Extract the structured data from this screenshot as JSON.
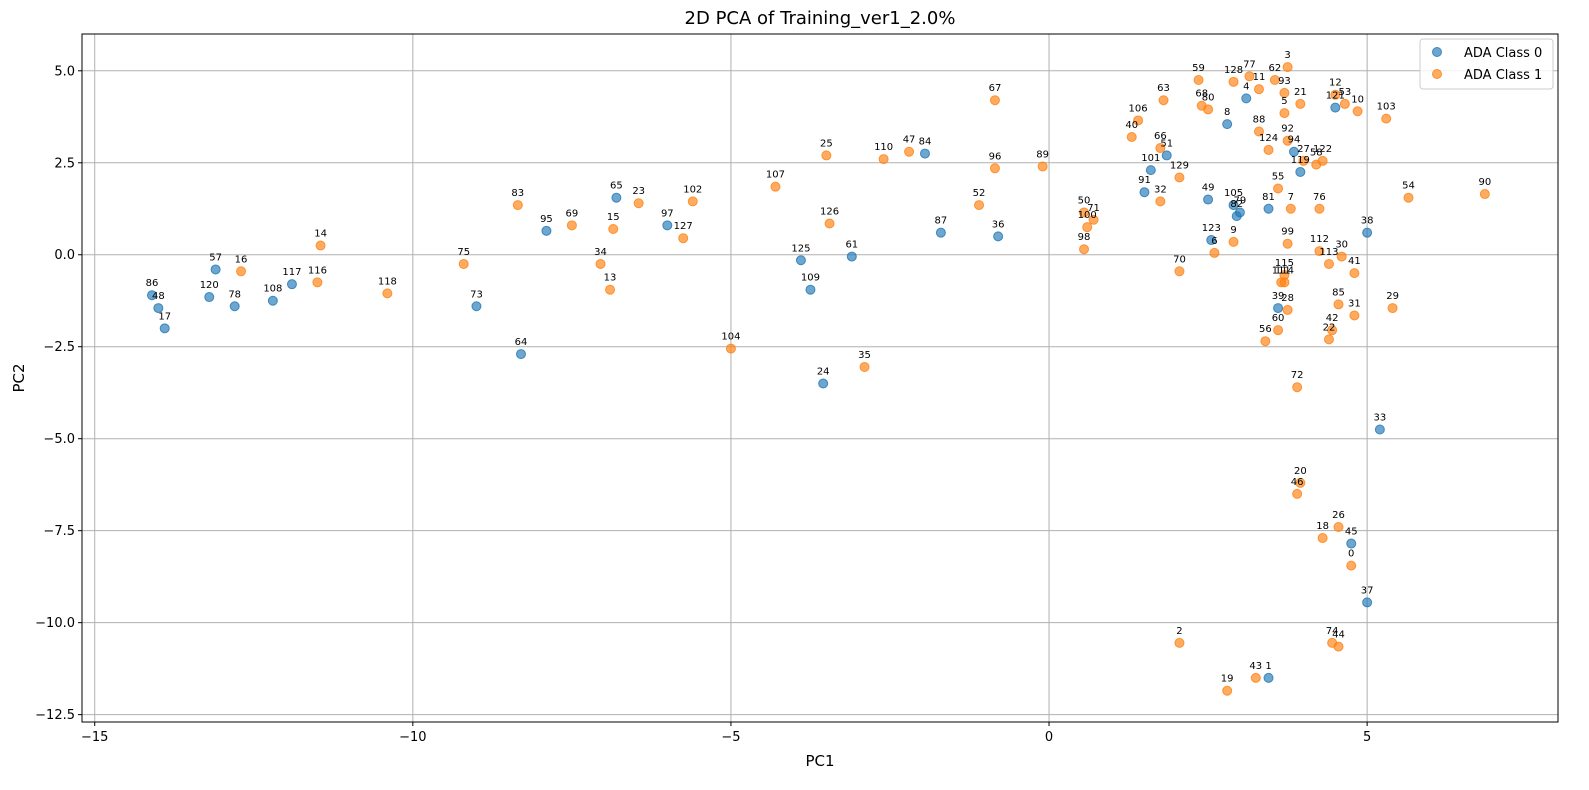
{
  "chart_data": {
    "type": "scatter",
    "title": "2D PCA of Training_ver1_2.0%",
    "xlabel": "PC1",
    "ylabel": "PC2",
    "xlim": [
      -15.2,
      8.0
    ],
    "ylim": [
      -12.7,
      6.0
    ],
    "xticks": [
      -15,
      -10,
      -5,
      0,
      5
    ],
    "yticks": [
      5.0,
      2.5,
      0.0,
      -2.5,
      -5.0,
      -7.5,
      -10.0,
      -12.5
    ],
    "xtick_labels": [
      "−15",
      "−10",
      "−5",
      "0",
      "5"
    ],
    "ytick_labels": [
      "5.0",
      "2.5",
      "0.0",
      "−2.5",
      "−5.0",
      "−7.5",
      "−10.0",
      "−12.5"
    ],
    "grid": true,
    "legend_position": "top-right",
    "series": [
      {
        "name": "ADA Class 0",
        "color": "#1f77b4",
        "points": [
          {
            "label": "86",
            "x": -14.1,
            "y": -1.1
          },
          {
            "label": "48",
            "x": -14.0,
            "y": -1.45
          },
          {
            "label": "17",
            "x": -13.9,
            "y": -2.0
          },
          {
            "label": "57",
            "x": -13.1,
            "y": -0.4
          },
          {
            "label": "120",
            "x": -13.2,
            "y": -1.15
          },
          {
            "label": "78",
            "x": -12.8,
            "y": -1.4
          },
          {
            "label": "108",
            "x": -12.2,
            "y": -1.25
          },
          {
            "label": "117",
            "x": -11.9,
            "y": -0.8
          },
          {
            "label": "73",
            "x": -9.0,
            "y": -1.4
          },
          {
            "label": "64",
            "x": -8.3,
            "y": -2.7
          },
          {
            "label": "95",
            "x": -7.9,
            "y": 0.65
          },
          {
            "label": "65",
            "x": -6.8,
            "y": 1.55
          },
          {
            "label": "97",
            "x": -6.0,
            "y": 0.8
          },
          {
            "label": "125",
            "x": -3.9,
            "y": -0.15
          },
          {
            "label": "109",
            "x": -3.75,
            "y": -0.95
          },
          {
            "label": "61",
            "x": -3.1,
            "y": -0.05
          },
          {
            "label": "24",
            "x": -3.55,
            "y": -3.5
          },
          {
            "label": "84",
            "x": -1.95,
            "y": 2.75
          },
          {
            "label": "87",
            "x": -1.7,
            "y": 0.6
          },
          {
            "label": "36",
            "x": -0.8,
            "y": 0.5
          },
          {
            "label": "101",
            "x": 1.6,
            "y": 2.3
          },
          {
            "label": "91",
            "x": 1.5,
            "y": 1.7
          },
          {
            "label": "51",
            "x": 1.85,
            "y": 2.7
          },
          {
            "label": "49",
            "x": 2.5,
            "y": 1.5
          },
          {
            "label": "105",
            "x": 2.9,
            "y": 1.35
          },
          {
            "label": "82",
            "x": 2.95,
            "y": 1.05
          },
          {
            "label": "79",
            "x": 3.0,
            "y": 1.15
          },
          {
            "label": "123",
            "x": 2.55,
            "y": 0.4
          },
          {
            "label": "8",
            "x": 2.8,
            "y": 3.55
          },
          {
            "label": "4",
            "x": 3.1,
            "y": 4.25
          },
          {
            "label": "81",
            "x": 3.45,
            "y": 1.25
          },
          {
            "label": "39",
            "x": 3.6,
            "y": -1.45
          },
          {
            "label": "94",
            "x": 3.85,
            "y": 2.8
          },
          {
            "label": "119",
            "x": 3.95,
            "y": 2.25
          },
          {
            "label": "121",
            "x": 4.5,
            "y": 4.0
          },
          {
            "label": "38",
            "x": 5.0,
            "y": 0.6
          },
          {
            "label": "33",
            "x": 5.2,
            "y": -4.75
          },
          {
            "label": "45",
            "x": 4.75,
            "y": -7.85
          },
          {
            "label": "37",
            "x": 5.0,
            "y": -9.45
          },
          {
            "label": "1",
            "x": 3.45,
            "y": -11.5
          }
        ]
      },
      {
        "name": "ADA Class 1",
        "color": "#ff7f0e",
        "points": [
          {
            "label": "16",
            "x": -12.7,
            "y": -0.45
          },
          {
            "label": "14",
            "x": -11.45,
            "y": 0.25
          },
          {
            "label": "116",
            "x": -11.5,
            "y": -0.75
          },
          {
            "label": "118",
            "x": -10.4,
            "y": -1.05
          },
          {
            "label": "75",
            "x": -9.2,
            "y": -0.25
          },
          {
            "label": "83",
            "x": -8.35,
            "y": 1.35
          },
          {
            "label": "69",
            "x": -7.5,
            "y": 0.8
          },
          {
            "label": "34",
            "x": -7.05,
            "y": -0.25
          },
          {
            "label": "13",
            "x": -6.9,
            "y": -0.95
          },
          {
            "label": "15",
            "x": -6.85,
            "y": 0.7
          },
          {
            "label": "23",
            "x": -6.45,
            "y": 1.4
          },
          {
            "label": "127",
            "x": -5.75,
            "y": 0.45
          },
          {
            "label": "102",
            "x": -5.6,
            "y": 1.45
          },
          {
            "label": "104",
            "x": -5.0,
            "y": -2.55
          },
          {
            "label": "107",
            "x": -4.3,
            "y": 1.85
          },
          {
            "label": "25",
            "x": -3.5,
            "y": 2.7
          },
          {
            "label": "126",
            "x": -3.45,
            "y": 0.85
          },
          {
            "label": "35",
            "x": -2.9,
            "y": -3.05
          },
          {
            "label": "110",
            "x": -2.6,
            "y": 2.6
          },
          {
            "label": "47",
            "x": -2.2,
            "y": 2.8
          },
          {
            "label": "52",
            "x": -1.1,
            "y": 1.35
          },
          {
            "label": "67",
            "x": -0.85,
            "y": 4.2
          },
          {
            "label": "96",
            "x": -0.85,
            "y": 2.35
          },
          {
            "label": "89",
            "x": -0.1,
            "y": 2.4
          },
          {
            "label": "50",
            "x": 0.55,
            "y": 1.15
          },
          {
            "label": "100",
            "x": 0.6,
            "y": 0.75
          },
          {
            "label": "71",
            "x": 0.7,
            "y": 0.95
          },
          {
            "label": "98",
            "x": 0.55,
            "y": 0.15
          },
          {
            "label": "106",
            "x": 1.4,
            "y": 3.65
          },
          {
            "label": "40",
            "x": 1.3,
            "y": 3.2
          },
          {
            "label": "63",
            "x": 1.8,
            "y": 4.2
          },
          {
            "label": "66",
            "x": 1.75,
            "y": 2.9
          },
          {
            "label": "32",
            "x": 1.75,
            "y": 1.45
          },
          {
            "label": "129",
            "x": 2.05,
            "y": 2.1
          },
          {
            "label": "70",
            "x": 2.05,
            "y": -0.45
          },
          {
            "label": "59",
            "x": 2.35,
            "y": 4.75
          },
          {
            "label": "68",
            "x": 2.4,
            "y": 4.05
          },
          {
            "label": "80",
            "x": 2.5,
            "y": 3.95
          },
          {
            "label": "6",
            "x": 2.6,
            "y": 0.05
          },
          {
            "label": "9",
            "x": 2.9,
            "y": 0.35
          },
          {
            "label": "128",
            "x": 2.9,
            "y": 4.7
          },
          {
            "label": "77",
            "x": 3.15,
            "y": 4.85
          },
          {
            "label": "11",
            "x": 3.3,
            "y": 4.5
          },
          {
            "label": "88",
            "x": 3.3,
            "y": 3.35
          },
          {
            "label": "124",
            "x": 3.45,
            "y": 2.85
          },
          {
            "label": "62",
            "x": 3.55,
            "y": 4.75
          },
          {
            "label": "3",
            "x": 3.75,
            "y": 5.1
          },
          {
            "label": "93",
            "x": 3.7,
            "y": 4.4
          },
          {
            "label": "5",
            "x": 3.7,
            "y": 3.85
          },
          {
            "label": "21",
            "x": 3.95,
            "y": 4.1
          },
          {
            "label": "92",
            "x": 3.75,
            "y": 3.1
          },
          {
            "label": "55",
            "x": 3.6,
            "y": 1.8
          },
          {
            "label": "7",
            "x": 3.8,
            "y": 1.25
          },
          {
            "label": "99",
            "x": 3.75,
            "y": 0.3
          },
          {
            "label": "115",
            "x": 3.7,
            "y": -0.55
          },
          {
            "label": "111",
            "x": 3.65,
            "y": -0.75
          },
          {
            "label": "114",
            "x": 3.7,
            "y": -0.75
          },
          {
            "label": "28",
            "x": 3.75,
            "y": -1.5
          },
          {
            "label": "60",
            "x": 3.6,
            "y": -2.05
          },
          {
            "label": "56",
            "x": 3.4,
            "y": -2.35
          },
          {
            "label": "72",
            "x": 3.9,
            "y": -3.6
          },
          {
            "label": "27",
            "x": 4.0,
            "y": 2.55
          },
          {
            "label": "58",
            "x": 4.2,
            "y": 2.45
          },
          {
            "label": "122",
            "x": 4.3,
            "y": 2.55
          },
          {
            "label": "76",
            "x": 4.25,
            "y": 1.25
          },
          {
            "label": "112",
            "x": 4.25,
            "y": 0.1
          },
          {
            "label": "113",
            "x": 4.4,
            "y": -0.25
          },
          {
            "label": "30",
            "x": 4.6,
            "y": -0.05
          },
          {
            "label": "41",
            "x": 4.8,
            "y": -0.5
          },
          {
            "label": "85",
            "x": 4.55,
            "y": -1.35
          },
          {
            "label": "31",
            "x": 4.8,
            "y": -1.65
          },
          {
            "label": "42",
            "x": 4.45,
            "y": -2.05
          },
          {
            "label": "22",
            "x": 4.4,
            "y": -2.3
          },
          {
            "label": "12",
            "x": 4.5,
            "y": 4.35
          },
          {
            "label": "53",
            "x": 4.65,
            "y": 4.1
          },
          {
            "label": "10",
            "x": 4.85,
            "y": 3.9
          },
          {
            "label": "103",
            "x": 5.3,
            "y": 3.7
          },
          {
            "label": "54",
            "x": 5.65,
            "y": 1.55
          },
          {
            "label": "90",
            "x": 6.85,
            "y": 1.65
          },
          {
            "label": "29",
            "x": 5.4,
            "y": -1.45
          },
          {
            "label": "20",
            "x": 3.95,
            "y": -6.2
          },
          {
            "label": "46",
            "x": 3.9,
            "y": -6.5
          },
          {
            "label": "26",
            "x": 4.55,
            "y": -7.4
          },
          {
            "label": "18",
            "x": 4.3,
            "y": -7.7
          },
          {
            "label": "0",
            "x": 4.75,
            "y": -8.45
          },
          {
            "label": "2",
            "x": 2.05,
            "y": -10.55
          },
          {
            "label": "74",
            "x": 4.45,
            "y": -10.55
          },
          {
            "label": "44",
            "x": 4.55,
            "y": -10.65
          },
          {
            "label": "43",
            "x": 3.25,
            "y": -11.5
          },
          {
            "label": "19",
            "x": 2.8,
            "y": -11.85
          }
        ]
      }
    ]
  }
}
